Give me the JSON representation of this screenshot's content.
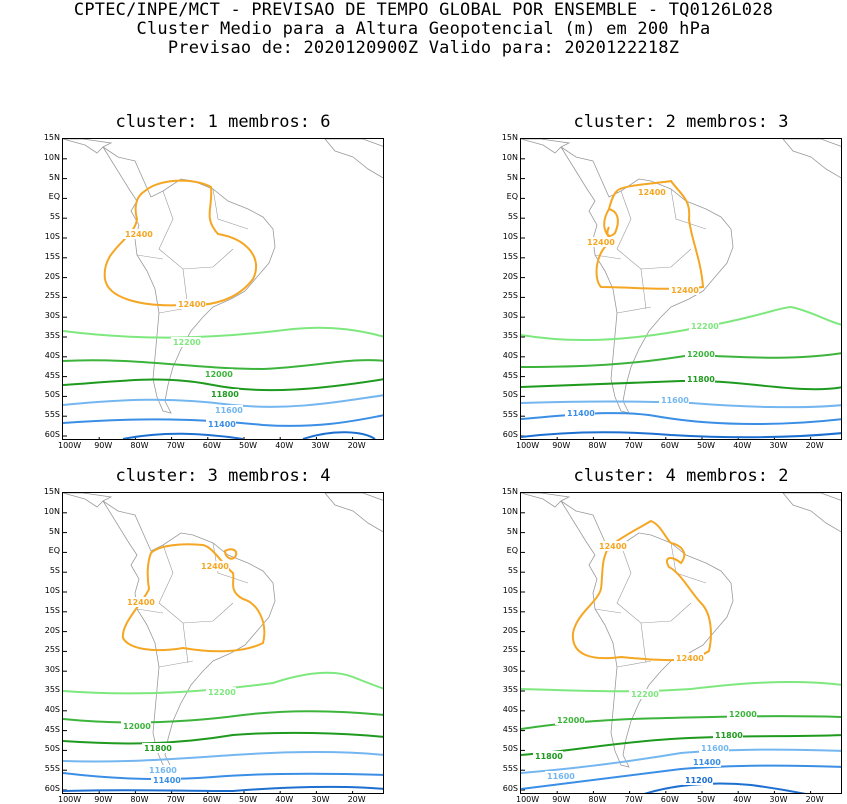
{
  "header": {
    "line1": "CPTEC/INPE/MCT - PREVISAO DE TEMPO GLOBAL POR ENSEMBLE - TQ0126L028",
    "line2": "Cluster Medio para a Altura Geopotencial (m) em 200 hPa",
    "line3": "Previsao de: 2020120900Z    Valido para: 2020122218Z"
  },
  "axes": {
    "lat_labels": [
      "15N",
      "10N",
      "5N",
      "EQ",
      "5S",
      "10S",
      "15S",
      "20S",
      "25S",
      "30S",
      "35S",
      "40S",
      "45S",
      "50S",
      "55S",
      "60S"
    ],
    "lon_labels": [
      "100W",
      "90W",
      "80W",
      "70W",
      "60W",
      "50W",
      "40W",
      "30W",
      "20W"
    ]
  },
  "colors": {
    "c12400": "#f5a623",
    "c12200": "#7ee87e",
    "c12000": "#3cb43c",
    "c11800": "#1e9a1e",
    "c11600": "#74b6f0",
    "c11400": "#3a8ee6",
    "c11200": "#1d6fd0",
    "land": "#9a9a9a"
  },
  "panels": [
    {
      "title": "cluster: 1   membros: 6",
      "labels": [
        "12400",
        "12400",
        "12200",
        "12000",
        "11800",
        "11600",
        "11400"
      ]
    },
    {
      "title": "cluster: 2   membros: 3",
      "labels": [
        "12400",
        "12400",
        "12400",
        "12200",
        "12000",
        "11800",
        "11600",
        "11400"
      ]
    },
    {
      "title": "cluster: 3   membros: 4",
      "labels": [
        "12400",
        "12400",
        "12200",
        "12000",
        "11800",
        "11600",
        "11400"
      ]
    },
    {
      "title": "cluster: 4   membros: 2",
      "labels": [
        "12400",
        "12400",
        "12200",
        "12000",
        "12000",
        "11800",
        "11800",
        "11600",
        "11600",
        "11400",
        "11200"
      ]
    }
  ]
}
